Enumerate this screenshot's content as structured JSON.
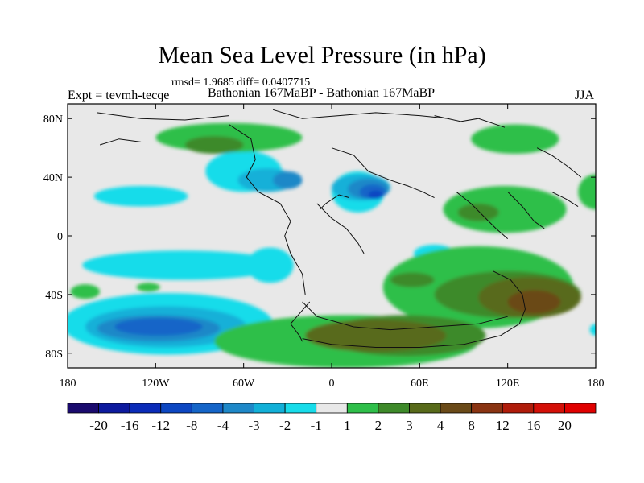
{
  "chart_data": {
    "type": "heatmap",
    "title": "Mean Sea Level Pressure (in hPa)",
    "stats": "rmsd= 1.9685 diff= 0.0407715",
    "experiment": "Expt = tevmh-tecqe",
    "subtitle": "Bathonian 167MaBP - Bathonian 167MaBP",
    "season": "JJA",
    "x_ticks": [
      "180",
      "120W",
      "60W",
      "0",
      "60E",
      "120E",
      "180"
    ],
    "x_values": [
      -180,
      -120,
      -60,
      0,
      60,
      120,
      180
    ],
    "y_ticks": [
      "80N",
      "40N",
      "0",
      "40S",
      "80S"
    ],
    "y_values": [
      80,
      40,
      0,
      -40,
      -80
    ],
    "xlim": [
      -180,
      180
    ],
    "ylim": [
      -90,
      90
    ],
    "colorbar": {
      "labels": [
        "-20",
        "-16",
        "-12",
        "-8",
        "-4",
        "-3",
        "-2",
        "-1",
        "1",
        "2",
        "3",
        "4",
        "8",
        "12",
        "16",
        "20"
      ],
      "colors": [
        "#1a0a6e",
        "#0d1a9e",
        "#0a2bb8",
        "#0d47c2",
        "#1565c8",
        "#1e88c8",
        "#12b0d8",
        "#18dcea",
        "#e8e8e8",
        "#2fbf4a",
        "#3e8a2a",
        "#586a1a",
        "#6a4a18",
        "#8a3412",
        "#b01c0a",
        "#d41008",
        "#e00000"
      ]
    },
    "field_regions": [
      {
        "level": "-1",
        "lon": -130,
        "lat": 27,
        "rlon": 32,
        "rlat": 7
      },
      {
        "level": "-1",
        "lon": -60,
        "lat": 44,
        "rlon": 26,
        "rlat": 14
      },
      {
        "level": "-1",
        "lon": 18,
        "lat": 30,
        "rlon": 18,
        "rlat": 14
      },
      {
        "level": "-1",
        "lon": 70,
        "lat": -12,
        "rlon": 14,
        "rlat": 6
      },
      {
        "level": "-1",
        "lon": -102,
        "lat": -20,
        "rlon": 68,
        "rlat": 10
      },
      {
        "level": "-1",
        "lon": -112,
        "lat": -60,
        "rlon": 72,
        "rlat": 21
      },
      {
        "level": "-1",
        "lon": -42,
        "lat": -20,
        "rlon": 16,
        "rlat": 12
      },
      {
        "level": "-1",
        "lon": 180,
        "lat": -64,
        "rlon": 4,
        "rlat": 4
      },
      {
        "level": "-2",
        "lon": -113,
        "lat": -62,
        "rlon": 55,
        "rlat": 14
      },
      {
        "level": "-2",
        "lon": -44,
        "lat": 38,
        "rlon": 20,
        "rlat": 8
      },
      {
        "level": "-2",
        "lon": 20,
        "lat": 33,
        "rlon": 20,
        "rlat": 9
      },
      {
        "level": "-3",
        "lon": -118,
        "lat": -63,
        "rlon": 42,
        "rlat": 9
      },
      {
        "level": "-3",
        "lon": 25,
        "lat": 32,
        "rlon": 14,
        "rlat": 7
      },
      {
        "level": "-3",
        "lon": -30,
        "lat": 38,
        "rlon": 10,
        "rlat": 6
      },
      {
        "level": "-4",
        "lon": -118,
        "lat": -62,
        "rlon": 30,
        "rlat": 6
      },
      {
        "level": "-4",
        "lon": 28,
        "lat": 30,
        "rlon": 9,
        "rlat": 5
      },
      {
        "level": "-8",
        "lon": 30,
        "lat": 28,
        "rlon": 5,
        "rlat": 3
      },
      {
        "level": "2",
        "lon": -70,
        "lat": 67,
        "rlon": 50,
        "rlat": 10
      },
      {
        "level": "2",
        "lon": 125,
        "lat": 66,
        "rlon": 30,
        "rlat": 10
      },
      {
        "level": "2",
        "lon": 118,
        "lat": 18,
        "rlon": 42,
        "rlat": 16
      },
      {
        "level": "2",
        "lon": 100,
        "lat": -35,
        "rlon": 65,
        "rlat": 28
      },
      {
        "level": "2",
        "lon": 10,
        "lat": -72,
        "rlon": 90,
        "rlat": 18
      },
      {
        "level": "2",
        "lon": -125,
        "lat": -35,
        "rlon": 8,
        "rlat": 3
      },
      {
        "level": "2",
        "lon": 180,
        "lat": 30,
        "rlon": 12,
        "rlat": 12
      },
      {
        "level": "2",
        "lon": -168,
        "lat": -38,
        "rlon": 10,
        "rlat": 5
      },
      {
        "level": "3",
        "lon": -80,
        "lat": 62,
        "rlon": 20,
        "rlat": 6
      },
      {
        "level": "3",
        "lon": 100,
        "lat": 16,
        "rlon": 14,
        "rlat": 6
      },
      {
        "level": "3",
        "lon": 120,
        "lat": -40,
        "rlon": 50,
        "rlat": 16
      },
      {
        "level": "3",
        "lon": 55,
        "lat": -30,
        "rlon": 15,
        "rlat": 5
      },
      {
        "level": "3",
        "lon": 50,
        "lat": -68,
        "rlon": 55,
        "rlat": 14
      },
      {
        "level": "4",
        "lon": 135,
        "lat": -42,
        "rlon": 35,
        "rlat": 14
      },
      {
        "level": "4",
        "lon": 30,
        "lat": -68,
        "rlon": 48,
        "rlat": 11
      },
      {
        "level": "8",
        "lon": 138,
        "lat": -45,
        "rlon": 18,
        "rlat": 8
      }
    ]
  }
}
